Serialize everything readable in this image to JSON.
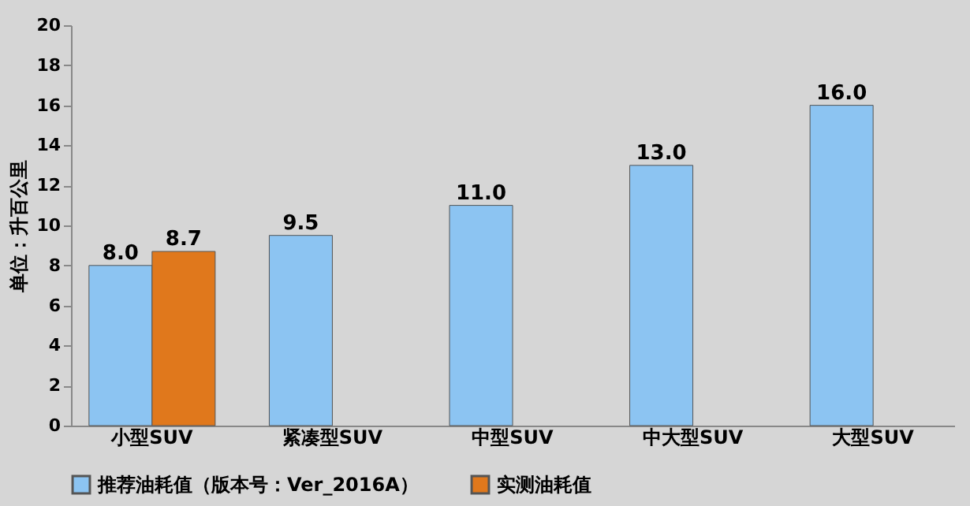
{
  "chart_data": {
    "type": "bar",
    "ylabel": "单位：升百公里",
    "categories": [
      "小型SUV",
      "紧凑型SUV",
      "中型SUV",
      "中大型SUV",
      "大型SUV"
    ],
    "series": [
      {
        "name": "推荐油耗值（版本号：Ver_2016A）",
        "color": "#8cc4f2",
        "values": [
          8.0,
          9.5,
          11.0,
          13.0,
          16.0
        ],
        "value_labels": [
          "8.0",
          "9.5",
          "11.0",
          "13.0",
          "16.0"
        ]
      },
      {
        "name": "实测油耗值",
        "color": "#e0781c",
        "values": [
          8.7,
          null,
          null,
          null,
          null
        ],
        "value_labels": [
          "8.7",
          null,
          null,
          null,
          null
        ]
      }
    ],
    "ylim": [
      0,
      20
    ],
    "yticks": [
      0,
      2,
      4,
      6,
      8,
      10,
      12,
      14,
      16,
      18,
      20
    ],
    "grid": false,
    "legend": "bottom"
  }
}
